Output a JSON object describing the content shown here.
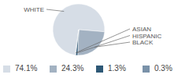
{
  "chart_data": {
    "type": "pie",
    "categories": [
      "WHITE",
      "BLACK",
      "HISPANIC",
      "ASIAN"
    ],
    "values": [
      74.1,
      24.3,
      1.3,
      0.3
    ],
    "value_labels": [
      "74.1%",
      "24.3%",
      "1.3%",
      "0.3%"
    ],
    "colors": [
      "#d6dde6",
      "#a3b2c2",
      "#2e5876",
      "#7a92a9"
    ]
  }
}
